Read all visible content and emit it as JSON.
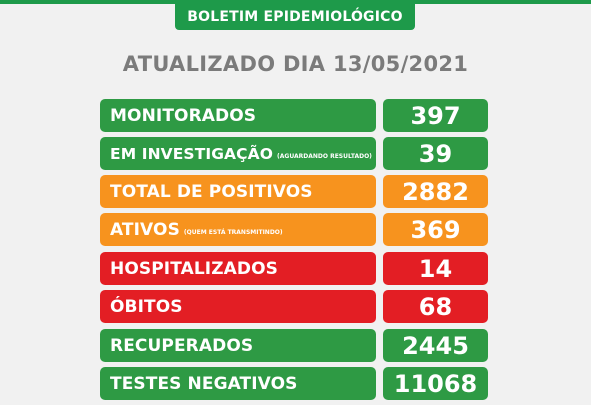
{
  "header": {
    "title": "BOLETIM EPIDEMIOLÓGICO"
  },
  "updated_line": "ATUALIZADO DIA 13/05/2021",
  "colors": {
    "green": "#2e9a44",
    "orange": "#f7931e",
    "red": "#e31e24",
    "header_green": "#1e9a4a",
    "subtitle_gray": "#7b7b7b"
  },
  "rows": [
    {
      "label": "MONITORADOS",
      "note": "",
      "value": "397",
      "color": "green"
    },
    {
      "label": "EM INVESTIGAÇÃO",
      "note": "(AGUARDANDO RESULTADO)",
      "value": "39",
      "color": "green"
    },
    {
      "label": "TOTAL DE POSITIVOS",
      "note": "",
      "value": "2882",
      "color": "orange"
    },
    {
      "label": "ATIVOS",
      "note": "(QUEM ESTÁ TRANSMITINDO)",
      "value": "369",
      "color": "orange"
    },
    {
      "label": "HOSPITALIZADOS",
      "note": "",
      "value": "14",
      "color": "red"
    },
    {
      "label": "ÓBITOS",
      "note": "",
      "value": "68",
      "color": "red"
    },
    {
      "label": "RECUPERADOS",
      "note": "",
      "value": "2445",
      "color": "green"
    },
    {
      "label": "TESTES NEGATIVOS",
      "note": "",
      "value": "11068",
      "color": "green"
    }
  ]
}
